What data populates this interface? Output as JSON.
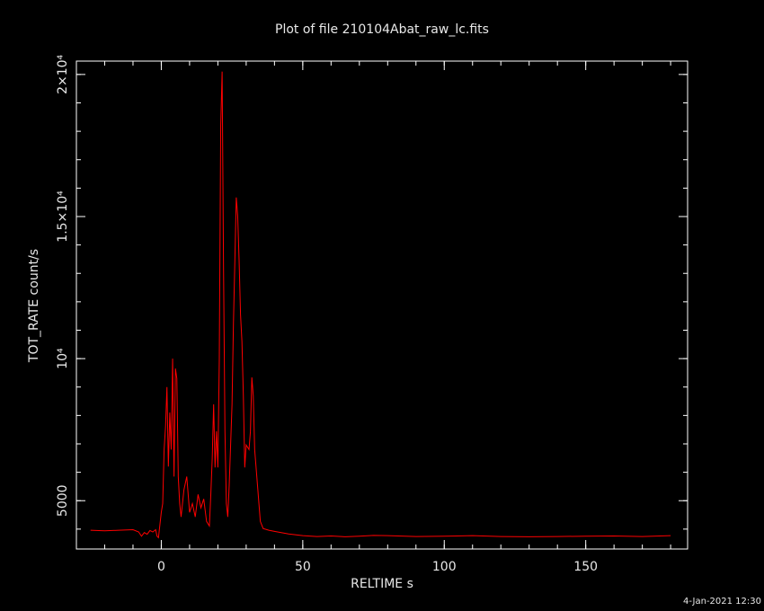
{
  "chart_data": {
    "type": "line",
    "title": "Plot of file 210104Abat_raw_lc.fits",
    "x_label": "RELTIME  s",
    "y_label": "TOT_RATE  count/s",
    "footer": "4-Jan-2021 12:30",
    "color": "#ff0000",
    "xlim": [
      -30,
      186
    ],
    "ylim": [
      3300,
      20470
    ],
    "xticks": [
      0,
      50,
      100,
      150
    ],
    "yticks": [
      5000,
      {
        "value": 10000,
        "label": "10⁴"
      },
      {
        "value": 15000,
        "label": "1.5×10⁴"
      },
      {
        "value": 20000,
        "label": "2×10⁴"
      }
    ],
    "x": [
      -25,
      -20,
      -15,
      -10,
      -8,
      -7,
      -6,
      -5,
      -4,
      -3,
      -2,
      -1.5,
      -1,
      0,
      0.5,
      1,
      1.5,
      2,
      2.5,
      3,
      3.5,
      4,
      4.5,
      5,
      5.5,
      6,
      6.5,
      7,
      8,
      9,
      10,
      11,
      12,
      13,
      14,
      15,
      16,
      17,
      17.5,
      18,
      18.5,
      19,
      19.5,
      20,
      20.5,
      21,
      21.5,
      22,
      22.5,
      23,
      23.5,
      24,
      25,
      25.5,
      26,
      26.5,
      27,
      27.5,
      28,
      28.5,
      29,
      29.5,
      30,
      31,
      31.5,
      32,
      32.5,
      33,
      34,
      35,
      36,
      38,
      40,
      45,
      50,
      55,
      60,
      65,
      70,
      75,
      80,
      90,
      100,
      110,
      120,
      130,
      140,
      150,
      160,
      170,
      180
    ],
    "values": [
      3960,
      3940,
      3960,
      3980,
      3900,
      3750,
      3880,
      3820,
      3950,
      3900,
      3980,
      3750,
      3700,
      4590,
      4900,
      6800,
      7600,
      9000,
      6200,
      8100,
      6800,
      10000,
      5850,
      9650,
      9300,
      5850,
      4900,
      4430,
      5380,
      5850,
      4590,
      4900,
      4430,
      5220,
      4750,
      5060,
      4270,
      4110,
      5220,
      6490,
      8390,
      6170,
      7440,
      6170,
      9970,
      18200,
      20100,
      13130,
      7440,
      4900,
      4430,
      5540,
      8390,
      11240,
      13450,
      15670,
      15030,
      13450,
      11550,
      10600,
      8700,
      6170,
      6960,
      6800,
      7440,
      9340,
      8700,
      6800,
      5540,
      4270,
      4020,
      3960,
      3920,
      3830,
      3770,
      3740,
      3760,
      3730,
      3750,
      3780,
      3770,
      3740,
      3750,
      3770,
      3740,
      3730,
      3740,
      3750,
      3760,
      3740,
      3770
    ]
  }
}
